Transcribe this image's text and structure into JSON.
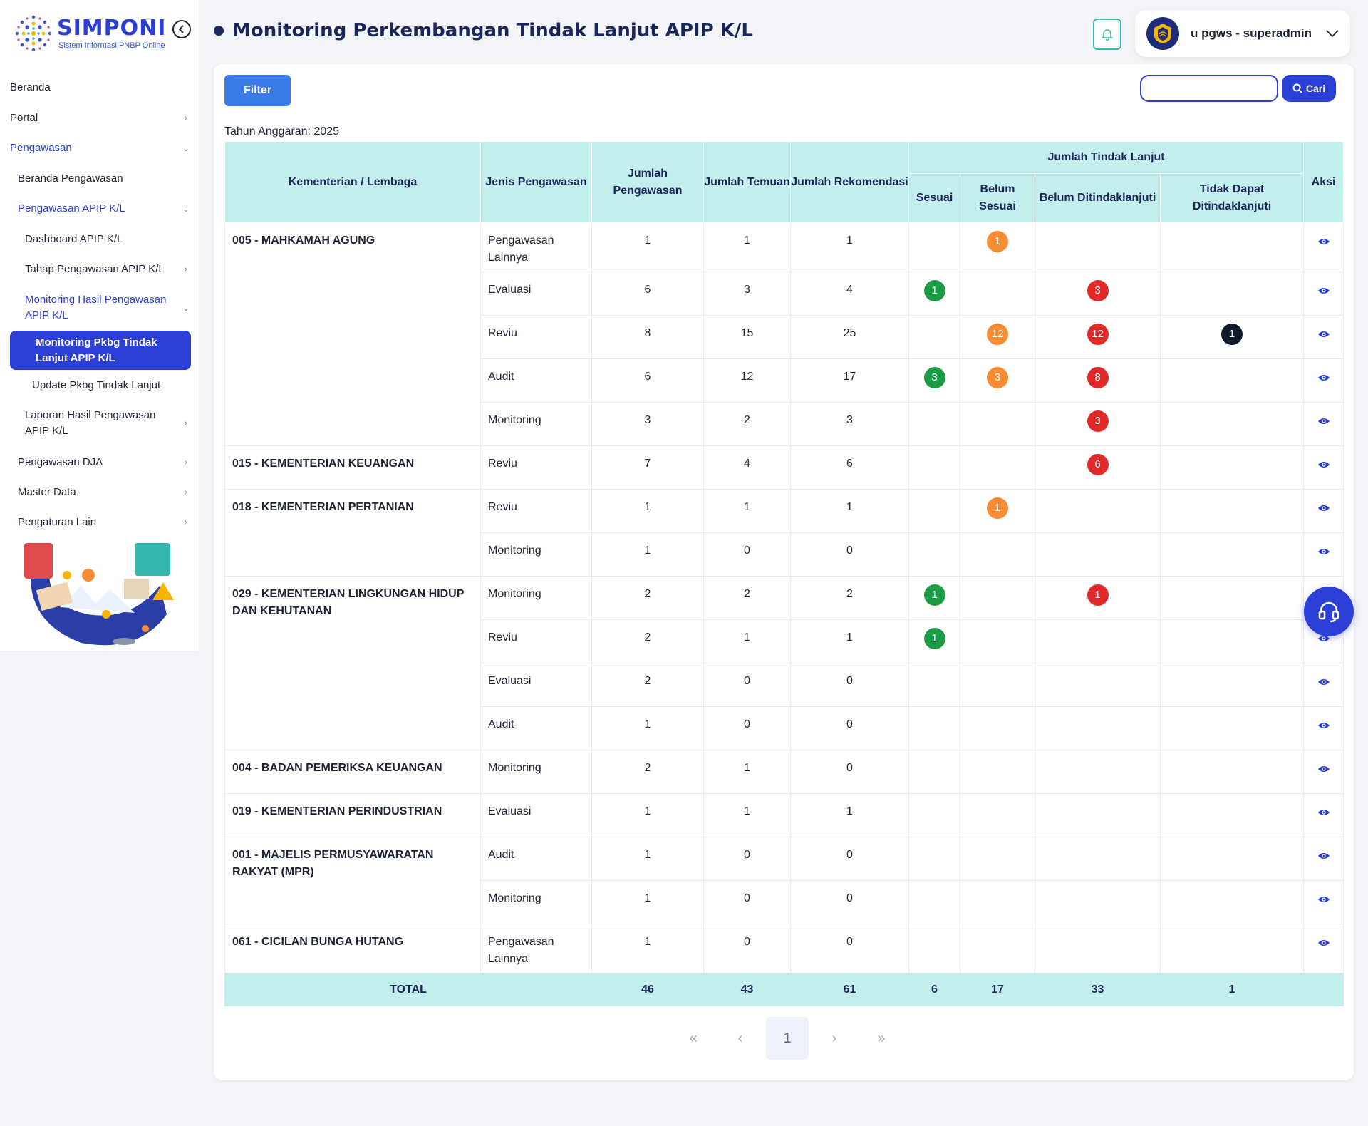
{
  "app": {
    "logo_text": "SIMPONI",
    "logo_subtitle": "Sistem Informasi PNBP Online",
    "accent_color": "#2b3ed6",
    "header_bg": "#c2efec"
  },
  "sidebar": {
    "items": [
      {
        "label": "Beranda",
        "chevron": ""
      },
      {
        "label": "Portal",
        "chevron": "›"
      },
      {
        "label": "Pengawasan",
        "chevron": "⌄"
      },
      {
        "label": "Beranda Pengawasan",
        "chevron": ""
      },
      {
        "label": "Pengawasan APIP K/L",
        "chevron": "⌄"
      },
      {
        "label": "Dashboard APIP K/L",
        "chevron": ""
      },
      {
        "label": "Tahap Pengawasan APIP K/L",
        "chevron": "›"
      },
      {
        "label": "Monitoring Hasil Pengawasan APIP K/L",
        "chevron": "⌄"
      },
      {
        "label": "Monitoring Pkbg Tindak Lanjut APIP K/L",
        "chevron": ""
      },
      {
        "label": "Update Pkbg Tindak Lanjut",
        "chevron": ""
      },
      {
        "label": "Laporan Hasil Pengawasan APIP K/L",
        "chevron": "›"
      },
      {
        "label": "Pengawasan DJA",
        "chevron": "›"
      },
      {
        "label": "Master Data",
        "chevron": "›"
      },
      {
        "label": "Pengaturan Lain",
        "chevron": "›"
      }
    ]
  },
  "header": {
    "title": "Monitoring Perkembangan Tindak Lanjut APIP K/L",
    "user_name": "u pgws - superadmin"
  },
  "toolbar": {
    "filter_label": "Filter",
    "search_placeholder": "",
    "search_value": "",
    "search_button_label": "Cari"
  },
  "tahun_anggaran": "Tahun Anggaran: 2025",
  "table": {
    "headers": {
      "kl": "Kementerian / Lembaga",
      "jenis": "Jenis Pengawasan",
      "jumlah_pengawasan": "Jumlah Pengawasan",
      "jumlah_temuan": "Jumlah Temuan",
      "jumlah_rekomendasi": "Jumlah Rekomendasi",
      "group": "Jumlah Tindak Lanjut",
      "sesuai": "Sesuai",
      "belum_sesuai": "Belum Sesuai",
      "belum_ditindaklanjuti": "Belum Ditindaklanjuti",
      "tidak_dapat": "Tidak Dapat Ditindaklanjuti",
      "aksi": "Aksi"
    },
    "groups": [
      {
        "name": "005 - MAHKAMAH AGUNG",
        "rows": [
          {
            "jenis": "Pengawasan Lainnya",
            "pengawasan": "1",
            "temuan": "1",
            "rekomendasi": "1",
            "sesuai": "",
            "belum_sesuai": "1",
            "belum_tl": "",
            "tidak_dapat": ""
          },
          {
            "jenis": "Evaluasi",
            "pengawasan": "6",
            "temuan": "3",
            "rekomendasi": "4",
            "sesuai": "1",
            "belum_sesuai": "",
            "belum_tl": "3",
            "tidak_dapat": ""
          },
          {
            "jenis": "Reviu",
            "pengawasan": "8",
            "temuan": "15",
            "rekomendasi": "25",
            "sesuai": "",
            "belum_sesuai": "12",
            "belum_tl": "12",
            "tidak_dapat": "1"
          },
          {
            "jenis": "Audit",
            "pengawasan": "6",
            "temuan": "12",
            "rekomendasi": "17",
            "sesuai": "3",
            "belum_sesuai": "3",
            "belum_tl": "8",
            "tidak_dapat": ""
          },
          {
            "jenis": "Monitoring",
            "pengawasan": "3",
            "temuan": "2",
            "rekomendasi": "3",
            "sesuai": "",
            "belum_sesuai": "",
            "belum_tl": "3",
            "tidak_dapat": ""
          }
        ]
      },
      {
        "name": "015 - KEMENTERIAN KEUANGAN",
        "rows": [
          {
            "jenis": "Reviu",
            "pengawasan": "7",
            "temuan": "4",
            "rekomendasi": "6",
            "sesuai": "",
            "belum_sesuai": "",
            "belum_tl": "6",
            "tidak_dapat": ""
          }
        ]
      },
      {
        "name": "018 - KEMENTERIAN PERTANIAN",
        "rows": [
          {
            "jenis": "Reviu",
            "pengawasan": "1",
            "temuan": "1",
            "rekomendasi": "1",
            "sesuai": "",
            "belum_sesuai": "1",
            "belum_tl": "",
            "tidak_dapat": ""
          },
          {
            "jenis": "Monitoring",
            "pengawasan": "1",
            "temuan": "0",
            "rekomendasi": "0",
            "sesuai": "",
            "belum_sesuai": "",
            "belum_tl": "",
            "tidak_dapat": ""
          }
        ]
      },
      {
        "name": "029 - KEMENTERIAN LINGKUNGAN HIDUP DAN KEHUTANAN",
        "rows": [
          {
            "jenis": "Monitoring",
            "pengawasan": "2",
            "temuan": "2",
            "rekomendasi": "2",
            "sesuai": "1",
            "belum_sesuai": "",
            "belum_tl": "1",
            "tidak_dapat": ""
          },
          {
            "jenis": "Reviu",
            "pengawasan": "2",
            "temuan": "1",
            "rekomendasi": "1",
            "sesuai": "1",
            "belum_sesuai": "",
            "belum_tl": "",
            "tidak_dapat": ""
          },
          {
            "jenis": "Evaluasi",
            "pengawasan": "2",
            "temuan": "0",
            "rekomendasi": "0",
            "sesuai": "",
            "belum_sesuai": "",
            "belum_tl": "",
            "tidak_dapat": ""
          },
          {
            "jenis": "Audit",
            "pengawasan": "1",
            "temuan": "0",
            "rekomendasi": "0",
            "sesuai": "",
            "belum_sesuai": "",
            "belum_tl": "",
            "tidak_dapat": ""
          }
        ]
      },
      {
        "name": "004 - BADAN PEMERIKSA KEUANGAN",
        "rows": [
          {
            "jenis": "Monitoring",
            "pengawasan": "2",
            "temuan": "1",
            "rekomendasi": "0",
            "sesuai": "",
            "belum_sesuai": "",
            "belum_tl": "",
            "tidak_dapat": ""
          }
        ]
      },
      {
        "name": "019 - KEMENTERIAN PERINDUSTRIAN",
        "rows": [
          {
            "jenis": "Evaluasi",
            "pengawasan": "1",
            "temuan": "1",
            "rekomendasi": "1",
            "sesuai": "",
            "belum_sesuai": "",
            "belum_tl": "",
            "tidak_dapat": ""
          }
        ]
      },
      {
        "name": "001 - MAJELIS PERMUSYAWARATAN RAKYAT (MPR)",
        "rows": [
          {
            "jenis": "Audit",
            "pengawasan": "1",
            "temuan": "0",
            "rekomendasi": "0",
            "sesuai": "",
            "belum_sesuai": "",
            "belum_tl": "",
            "tidak_dapat": ""
          },
          {
            "jenis": "Monitoring",
            "pengawasan": "1",
            "temuan": "0",
            "rekomendasi": "0",
            "sesuai": "",
            "belum_sesuai": "",
            "belum_tl": "",
            "tidak_dapat": ""
          }
        ]
      },
      {
        "name": "061 - CICILAN BUNGA HUTANG",
        "rows": [
          {
            "jenis": "Pengawasan Lainnya",
            "pengawasan": "1",
            "temuan": "0",
            "rekomendasi": "0",
            "sesuai": "",
            "belum_sesuai": "",
            "belum_tl": "",
            "tidak_dapat": ""
          }
        ]
      }
    ],
    "total": {
      "label": "TOTAL",
      "pengawasan": "46",
      "temuan": "43",
      "rekomendasi": "61",
      "sesuai": "6",
      "belum_sesuai": "17",
      "belum_tl": "33",
      "tidak_dapat": "1"
    },
    "badge_colors": {
      "sesuai": "#1d9a45",
      "belum_sesuai": "#f78c32",
      "belum_tl": "#e02a2a",
      "tidak_dapat": "#0f1a2a"
    }
  },
  "pagination": {
    "first": "«",
    "prev": "‹",
    "current": "1",
    "next": "›",
    "last": "»"
  },
  "icons": {
    "collapse": "chevron-left-circle-icon",
    "notification": "bell-icon",
    "user_dropdown": "chevron-down-icon",
    "search": "search-icon",
    "row_action": "eye-icon",
    "help": "headset-icon"
  }
}
